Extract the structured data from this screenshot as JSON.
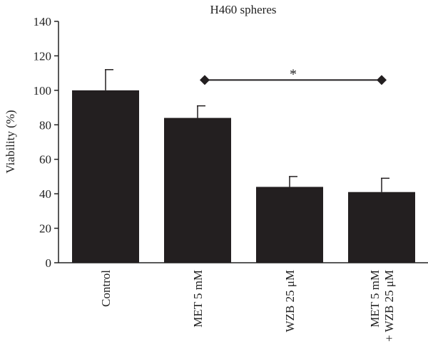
{
  "chart_data": {
    "type": "bar",
    "title": "H460 spheres",
    "ylabel": "Viability (%)",
    "xlabel": "",
    "ylim": [
      0,
      140
    ],
    "yticks": [
      0,
      20,
      40,
      60,
      80,
      100,
      120,
      140
    ],
    "categories": [
      [
        "Control"
      ],
      [
        "MET 5 mM"
      ],
      [
        "WZB 25 μM"
      ],
      [
        "MET 5 mM",
        "+ WZB 25 μM"
      ]
    ],
    "values": [
      100,
      84,
      44,
      41
    ],
    "errors": [
      12,
      7,
      6,
      8
    ],
    "bar_color": "#231f20",
    "significance": {
      "from_category": 1,
      "to_category": 3,
      "y": 106,
      "label": "*"
    },
    "grid": false
  }
}
